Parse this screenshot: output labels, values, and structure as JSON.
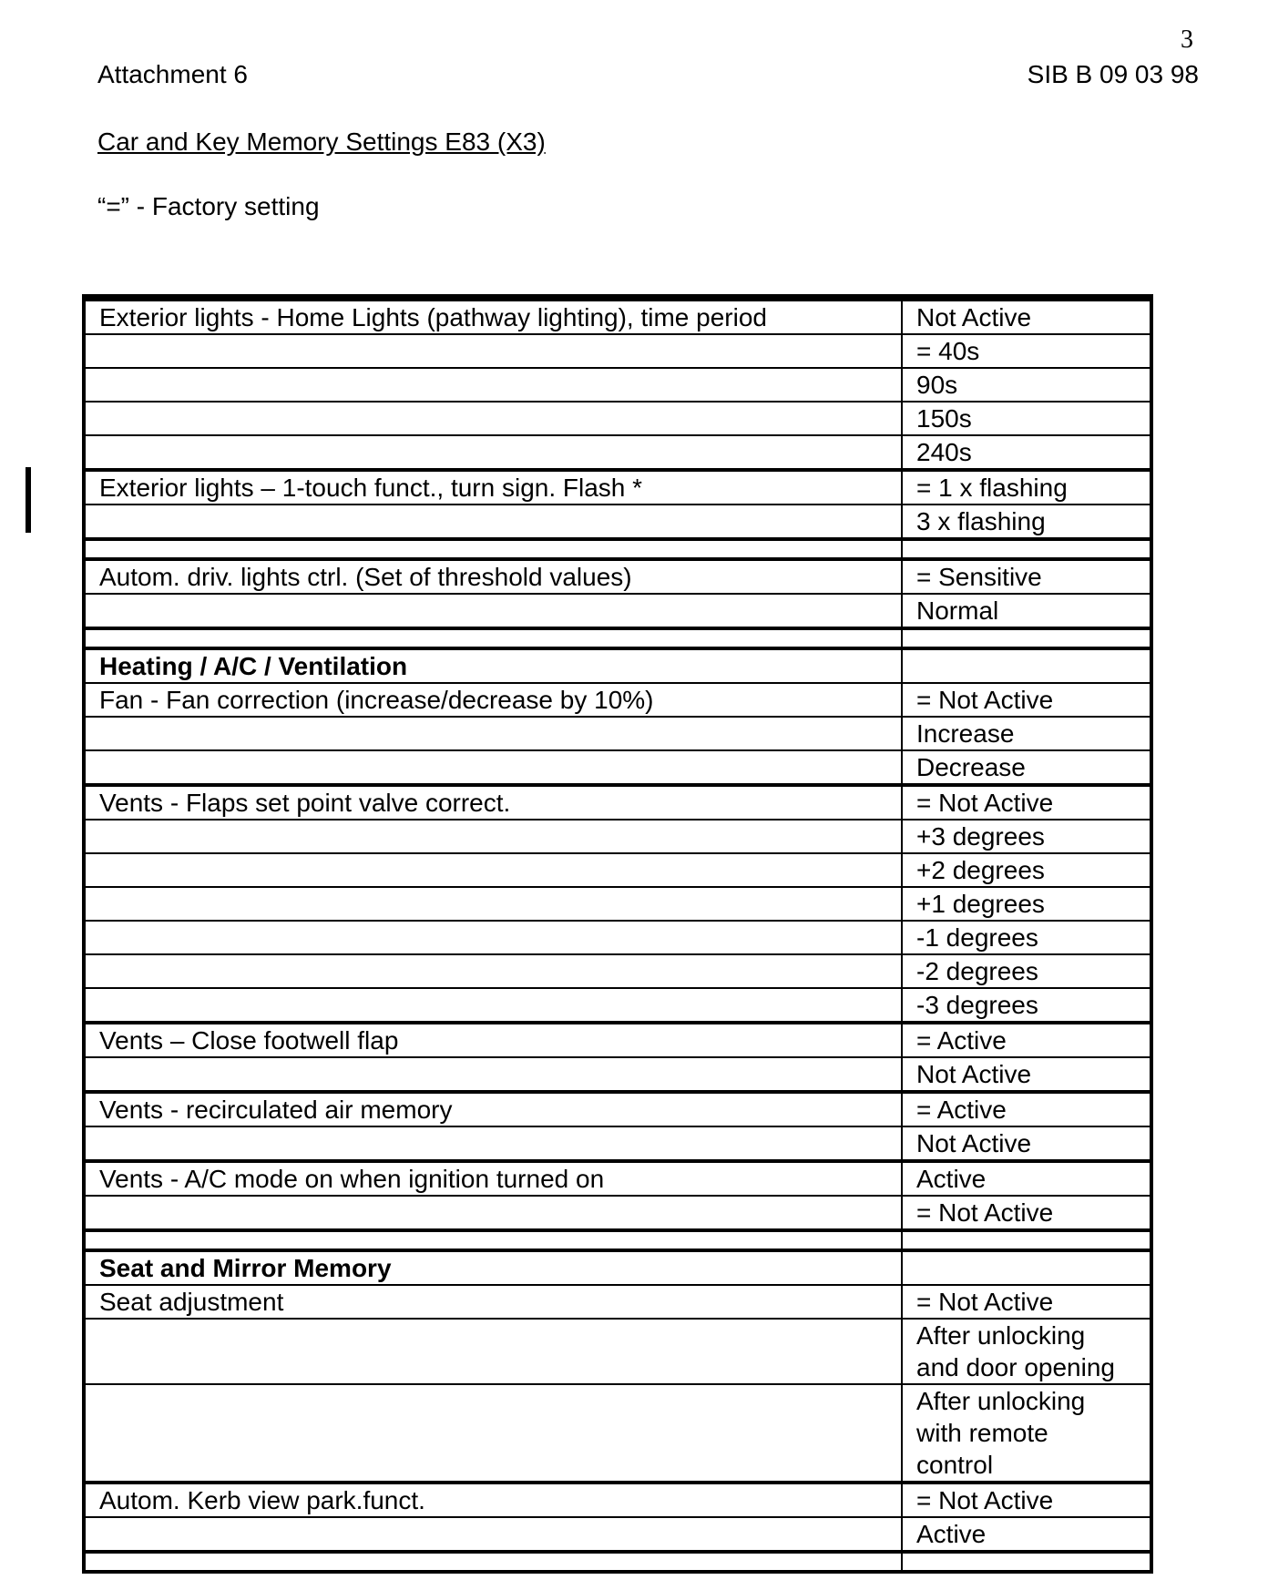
{
  "header": {
    "page_number": "3",
    "attachment": "Attachment 6",
    "reference": "SIB B 09 03 98",
    "title": "Car and Key Memory Settings E83 (X3)",
    "legend": "“=” - Factory setting"
  },
  "table": {
    "rows": [
      {
        "label": "Exterior lights - Home Lights (pathway lighting), time period",
        "value": "Not Active",
        "group_start": true
      },
      {
        "label": "",
        "value": "= 40s"
      },
      {
        "label": "",
        "value": "90s"
      },
      {
        "label": "",
        "value": "150s"
      },
      {
        "label": "",
        "value": "240s"
      },
      {
        "label": "Exterior lights – 1-touch funct., turn sign. Flash *",
        "value": "= 1 x flashing",
        "group_start": true
      },
      {
        "label": "",
        "value": "3 x flashing"
      },
      {
        "label": "",
        "value": "",
        "spacer": true,
        "group_start": true
      },
      {
        "label": "Autom. driv. lights ctrl. (Set of threshold values)",
        "value": "= Sensitive",
        "group_start": true
      },
      {
        "label": "",
        "value": "Normal"
      },
      {
        "label": "",
        "value": "",
        "spacer": true,
        "group_start": true
      },
      {
        "label": "Heating / A/C / Ventilation",
        "value": "",
        "heading": true,
        "group_start": true
      },
      {
        "label": "Fan - Fan correction (increase/decrease by 10%)",
        "value": "= Not Active"
      },
      {
        "label": "",
        "value": "Increase"
      },
      {
        "label": "",
        "value": "Decrease"
      },
      {
        "label": "Vents - Flaps set point valve correct.",
        "value": "= Not Active",
        "group_start": true
      },
      {
        "label": "",
        "value": "+3 degrees"
      },
      {
        "label": "",
        "value": "+2 degrees"
      },
      {
        "label": "",
        "value": "+1 degrees"
      },
      {
        "label": "",
        "value": "-1 degrees"
      },
      {
        "label": "",
        "value": "-2 degrees"
      },
      {
        "label": "",
        "value": "-3 degrees"
      },
      {
        "label": "Vents – Close footwell flap",
        "value": "= Active",
        "group_start": true
      },
      {
        "label": "",
        "value": "Not Active"
      },
      {
        "label": "Vents - recirculated air memory",
        "value": "= Active",
        "group_start": true
      },
      {
        "label": "",
        "value": "Not Active"
      },
      {
        "label": "Vents - A/C mode on when ignition turned on",
        "value": "Active",
        "group_start": true
      },
      {
        "label": "",
        "value": "= Not Active"
      },
      {
        "label": "",
        "value": "",
        "spacer": true,
        "group_start": true
      },
      {
        "label": "Seat and Mirror Memory",
        "value": "",
        "heading": true,
        "group_start": true
      },
      {
        "label": "Seat adjustment",
        "value": "= Not Active"
      },
      {
        "label": "",
        "value": "After unlocking\nand door opening"
      },
      {
        "label": "",
        "value": "After unlocking\nwith remote\ncontrol"
      },
      {
        "label": "Autom. Kerb view park.funct.",
        "value": "= Not Active",
        "group_start": true
      },
      {
        "label": "",
        "value": "Active"
      },
      {
        "label": "",
        "value": "",
        "spacer": true,
        "group_start": true
      }
    ]
  }
}
